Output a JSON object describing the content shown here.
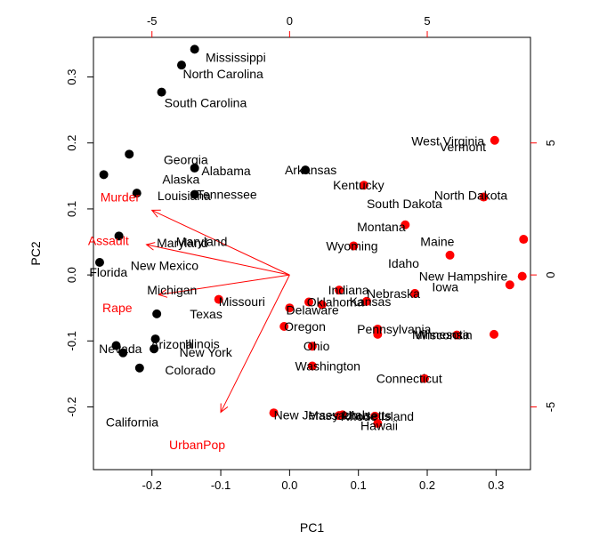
{
  "chart_data": {
    "type": "scatter",
    "xlabel": "PC1",
    "ylabel": "PC2",
    "xlim": [
      -0.285,
      0.35
    ],
    "ylim": [
      -0.295,
      0.36
    ],
    "x_ticks": [
      -0.2,
      -0.1,
      0.0,
      0.1,
      0.2,
      0.3
    ],
    "x_tick_labels": [
      "-0.2",
      "-0.1",
      "0.0",
      "0.1",
      "0.2",
      "0.3"
    ],
    "y_ticks": [
      -0.2,
      -0.1,
      0.0,
      0.1,
      0.2,
      0.3
    ],
    "y_tick_labels": [
      "-0.2",
      "-0.1",
      "0.0",
      "0.1",
      "0.2",
      "0.3"
    ],
    "top_ticks": [
      -5,
      0,
      5
    ],
    "top_tick_labels": [
      "-5",
      "0",
      "5"
    ],
    "right_ticks": [
      5,
      0,
      -5
    ],
    "right_tick_labels": [
      "5",
      "0",
      "-5"
    ],
    "secondary_scale": 0.04,
    "grid": false,
    "colors": {
      "black_group": "#000000",
      "red_group": "#ff0000",
      "axes": "#000000"
    },
    "points": [
      {
        "x": -0.138,
        "y": 0.342,
        "group": "black",
        "label": "Mississippi",
        "dx": 0.016,
        "dy": -0.012
      },
      {
        "x": -0.157,
        "y": 0.318,
        "group": "black",
        "label": "North Carolina",
        "dx": 0.002,
        "dy": -0.013
      },
      {
        "x": -0.186,
        "y": 0.277,
        "group": "black",
        "label": "South Carolina",
        "dx": 0.004,
        "dy": -0.016
      },
      {
        "x": -0.233,
        "y": 0.183,
        "group": "black",
        "label": "Georgia",
        "dx": 0.05,
        "dy": -0.008
      },
      {
        "x": -0.138,
        "y": 0.162,
        "group": "black",
        "label": "Alabama",
        "dx": 0.01,
        "dy": -0.004
      },
      {
        "x": -0.27,
        "y": 0.152,
        "group": "black",
        "label": "Alaska",
        "dx": 0.085,
        "dy": -0.007
      },
      {
        "x": -0.222,
        "y": 0.124,
        "group": "black",
        "label": "Louisiana",
        "dx": 0.03,
        "dy": -0.004
      },
      {
        "x": -0.138,
        "y": 0.122,
        "group": "black",
        "label": "Tennessee",
        "dx": 0.003,
        "dy": 0.0
      },
      {
        "x": 0.023,
        "y": 0.159,
        "group": "black",
        "label": "Arkansas",
        "dx": -0.03,
        "dy": 0.0
      },
      {
        "x": -0.248,
        "y": 0.059,
        "group": "black",
        "label": "Maryland",
        "dx": 0.055,
        "dy": -0.01
      },
      {
        "x": -0.276,
        "y": 0.019,
        "group": "black",
        "label": "Florida",
        "dx": -0.015,
        "dy": -0.015
      },
      {
        "x": -0.193,
        "y": -0.059,
        "group": "black",
        "label": "Texas",
        "dx": 0.048,
        "dy": 0.0
      },
      {
        "x": -0.195,
        "y": -0.097,
        "group": "black",
        "label": "Illinois",
        "dx": 0.043,
        "dy": -0.007
      },
      {
        "x": -0.252,
        "y": -0.107,
        "group": "black",
        "label": "Nevada",
        "dx": -0.025,
        "dy": -0.005
      },
      {
        "x": -0.242,
        "y": -0.118,
        "group": "black",
        "label": "Arizona",
        "dx": 0.04,
        "dy": 0.013
      },
      {
        "x": -0.218,
        "y": -0.141,
        "group": "black",
        "label": "Colorado",
        "dx": 0.037,
        "dy": -0.003
      },
      {
        "x": -0.197,
        "y": -0.112,
        "group": "black",
        "label": "New York",
        "dx": 0.037,
        "dy": -0.005
      },
      {
        "x": -0.103,
        "y": -0.037,
        "group": "red",
        "label": "Missouri",
        "dx": 0.0,
        "dy": -0.003
      },
      {
        "x": 0.298,
        "y": 0.204,
        "group": "red",
        "label": "Vermont",
        "dx": -0.08,
        "dy": -0.01
      },
      {
        "x": 0.108,
        "y": 0.136,
        "group": "red",
        "label": "Kentucky",
        "dx": -0.045,
        "dy": 0.0
      },
      {
        "x": 0.282,
        "y": 0.118,
        "group": "red",
        "label": "South Dakota",
        "dx": -0.17,
        "dy": -0.01
      },
      {
        "x": 0.168,
        "y": 0.076,
        "group": "red",
        "label": "Montana",
        "dx": -0.07,
        "dy": -0.003
      },
      {
        "x": 0.093,
        "y": 0.044,
        "group": "red",
        "label": "Wyoming",
        "dx": -0.04,
        "dy": 0.0
      },
      {
        "x": 0.233,
        "y": 0.03,
        "group": "red",
        "label": "Idaho",
        "dx": -0.09,
        "dy": -0.012
      },
      {
        "x": 0.34,
        "y": 0.054,
        "group": "red",
        "label": "North Dakota",
        "dx": -0.13,
        "dy": 0.067
      },
      {
        "x": 0.32,
        "y": -0.015,
        "group": "red",
        "label": "Maine",
        "dx": -0.13,
        "dy": 0.066
      },
      {
        "x": 0.338,
        "y": -0.002,
        "group": "red",
        "label": "New Hampshire",
        "dx": -0.15,
        "dy": 0.0
      },
      {
        "x": 0.297,
        "y": -0.09,
        "group": "red",
        "label": "West Virginia",
        "dx": -0.12,
        "dy": 0.293
      },
      {
        "x": 0.243,
        "y": -0.091,
        "group": "red",
        "label": "Wisconsin",
        "dx": -0.06,
        "dy": 0.0
      },
      {
        "x": 0.182,
        "y": -0.028,
        "group": "red",
        "label": "Iowa",
        "dx": 0.025,
        "dy": 0.01
      },
      {
        "x": 0.112,
        "y": -0.04,
        "group": "red",
        "label": "Nebraska",
        "dx": 0.0,
        "dy": 0.012
      },
      {
        "x": 0.072,
        "y": -0.023,
        "group": "red",
        "label": "Indiana",
        "dx": -0.016,
        "dy": 0.0
      },
      {
        "x": 0.047,
        "y": -0.045,
        "group": "red",
        "label": "Kansas",
        "dx": 0.04,
        "dy": 0.005
      },
      {
        "x": 0.028,
        "y": -0.041,
        "group": "red",
        "label": "Oklahoma",
        "dx": -0.003,
        "dy": 0.0
      },
      {
        "x": 0.0,
        "y": -0.05,
        "group": "red",
        "label": "Delaware",
        "dx": -0.005,
        "dy": -0.003
      },
      {
        "x": 0.128,
        "y": -0.082,
        "group": "red",
        "label": "Pennsylvania",
        "dx": -0.03,
        "dy": 0.0
      },
      {
        "x": 0.128,
        "y": -0.09,
        "group": "red",
        "label": "Minnesota",
        "dx": 0.05,
        "dy": 0.0
      },
      {
        "x": -0.008,
        "y": -0.078,
        "group": "red",
        "label": "Oregon",
        "dx": 0.0,
        "dy": 0.0
      },
      {
        "x": 0.033,
        "y": -0.108,
        "group": "red",
        "label": "Ohio",
        "dx": -0.013,
        "dy": 0.0
      },
      {
        "x": 0.033,
        "y": -0.138,
        "group": "red",
        "label": "Washington",
        "dx": -0.025,
        "dy": 0.0
      },
      {
        "x": 0.196,
        "y": -0.157,
        "group": "red",
        "label": "Connecticut",
        "dx": -0.07,
        "dy": 0.0
      },
      {
        "x": -0.023,
        "y": -0.209,
        "group": "red",
        "label": "New Jersey",
        "dx": 0.0,
        "dy": -0.003
      },
      {
        "x": 0.072,
        "y": -0.213,
        "group": "red",
        "label": "Massachusetts",
        "dx": -0.045,
        "dy": 0.0
      },
      {
        "x": 0.077,
        "y": -0.212,
        "group": "red",
        "label": "Utah",
        "dx": 0.0,
        "dy": 0.0
      },
      {
        "x": 0.124,
        "y": -0.214,
        "group": "red",
        "label": "Rhode Island",
        "dx": -0.05,
        "dy": 0.0
      },
      {
        "x": 0.128,
        "y": -0.225,
        "group": "red",
        "label": "Hawaii",
        "dx": -0.025,
        "dy": -0.003
      }
    ],
    "black_labels_no_marker": [
      {
        "x": -0.165,
        "y": 0.051,
        "label": "Maryland"
      },
      {
        "x": -0.231,
        "y": 0.014,
        "label": "New Mexico"
      },
      {
        "x": -0.207,
        "y": -0.023,
        "label": "Michigan"
      },
      {
        "x": -0.267,
        "y": -0.223,
        "label": "California"
      }
    ],
    "arrows": [
      {
        "label": "Murder",
        "x_end": -0.2,
        "y_end": 0.098,
        "lx": -0.275,
        "ly": 0.118
      },
      {
        "label": "Assault",
        "x_end": -0.208,
        "y_end": 0.046,
        "lx": -0.293,
        "ly": 0.052
      },
      {
        "label": "Rape",
        "x_end": -0.19,
        "y_end": -0.03,
        "lx": -0.272,
        "ly": -0.05
      },
      {
        "label": "UrbanPop",
        "x_end": -0.1,
        "y_end": -0.208,
        "lx": -0.175,
        "ly": -0.257
      }
    ]
  }
}
